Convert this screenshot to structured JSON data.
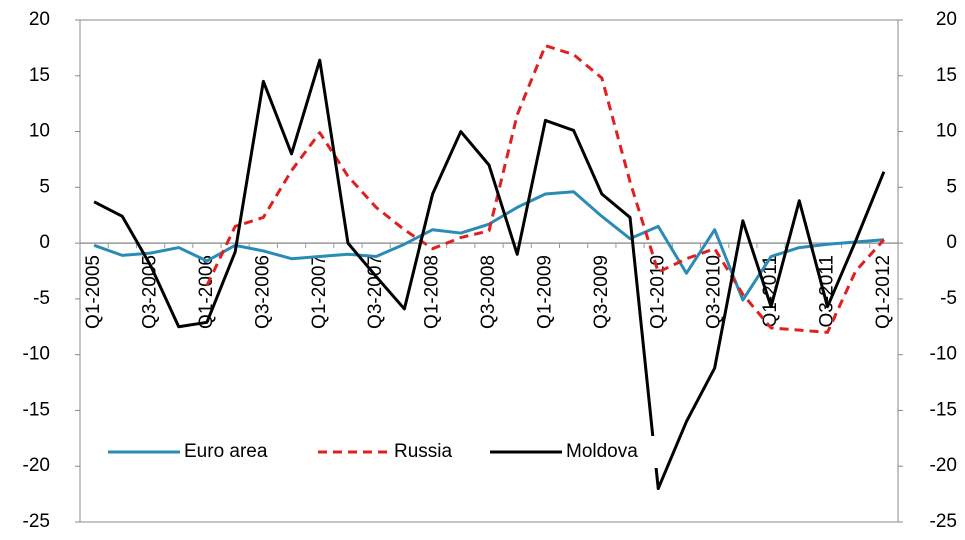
{
  "chart_data": {
    "type": "line",
    "categories": [
      "Q1-2005",
      null,
      "Q3-2005",
      null,
      "Q1-2006",
      null,
      "Q3-2006",
      null,
      "Q1-2007",
      null,
      "Q3-2007",
      null,
      "Q1-2008",
      null,
      "Q3-2008",
      null,
      "Q1-2009",
      null,
      "Q3-2009",
      null,
      "Q1-2010",
      null,
      "Q3-2010",
      null,
      "Q1-2011",
      null,
      "Q3-2011",
      null,
      "Q1-2012"
    ],
    "series": [
      {
        "name": "Euro area",
        "color": "#2a8cb5",
        "dash": false,
        "values": [
          -0.2,
          -1.1,
          -0.9,
          -0.4,
          -1.6,
          -0.2,
          -0.7,
          -1.4,
          -1.2,
          -1.0,
          -1.2,
          -0.1,
          1.2,
          0.9,
          1.7,
          3.2,
          4.4,
          4.6,
          2.4,
          0.4,
          1.5,
          -2.7,
          1.2,
          -5.1,
          -1.2,
          -0.4,
          -0.1,
          0.1,
          0.3
        ]
      },
      {
        "name": "Russia",
        "color": "#e02020",
        "dash": true,
        "values": [
          null,
          null,
          null,
          null,
          -3.8,
          1.5,
          2.3,
          6.5,
          9.9,
          6.0,
          3.2,
          1.2,
          -0.5,
          0.5,
          1.1,
          11.5,
          17.7,
          16.9,
          14.8,
          5.5,
          -2.6,
          -1.4,
          -0.5,
          -4.6,
          -7.6,
          -7.8,
          -8.0,
          -2.5,
          0.3
        ]
      },
      {
        "name": "Moldova",
        "color": "#000000",
        "dash": false,
        "values": [
          3.7,
          2.4,
          -2.0,
          -7.5,
          -7.1,
          -0.8,
          14.5,
          8.0,
          16.4,
          0.0,
          -3.0,
          -5.9,
          4.4,
          10.0,
          7.0,
          -1.0,
          11.0,
          10.1,
          4.4,
          2.3,
          -22.0,
          -16.0,
          -11.2,
          2.0,
          -5.7,
          3.8,
          -5.7,
          0.2,
          6.4
        ]
      }
    ],
    "ylim": [
      -25,
      20
    ],
    "yticks": [
      -25,
      -20,
      -15,
      -10,
      -5,
      0,
      5,
      10,
      15,
      20
    ],
    "y2lim": [
      -25,
      20
    ],
    "y2ticks": [
      -25,
      -20,
      -15,
      -10,
      -5,
      0,
      5,
      10,
      15,
      20
    ],
    "legend": "lower left"
  }
}
